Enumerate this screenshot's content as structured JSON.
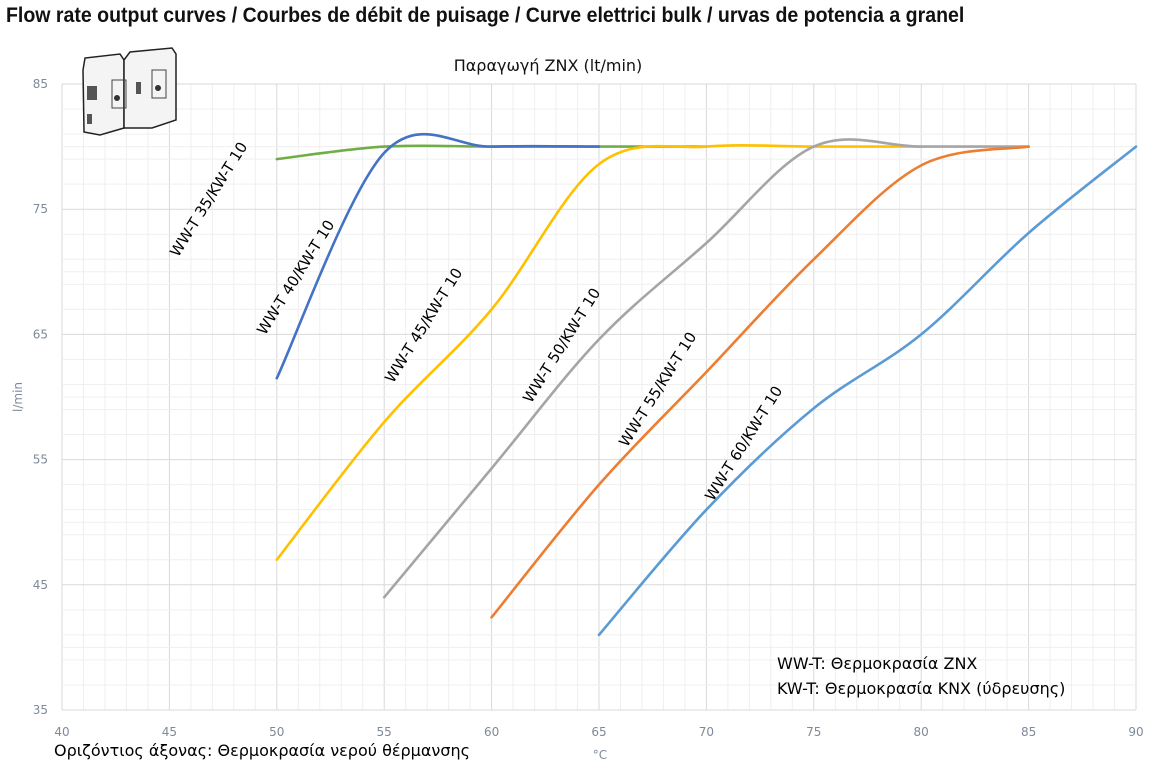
{
  "heading": "Flow rate output curves / Courbes de débit de puisage / Curve elettrici bulk / urvas de potencia a granel",
  "chart_data": {
    "type": "line",
    "title": "Παραγωγή ZNX (lt/min)",
    "xlabel": "°C",
    "ylabel": "l/min",
    "xlim": [
      40,
      90
    ],
    "ylim": [
      35,
      85
    ],
    "x_ticks": [
      "40",
      "45",
      "50",
      "55",
      "60",
      "65",
      "70",
      "75",
      "80",
      "85",
      "90"
    ],
    "y_ticks": [
      "35",
      "45",
      "55",
      "65",
      "75",
      "85"
    ],
    "grid": true,
    "smoothed": true,
    "series": [
      {
        "name": "WW-T 35/KW-T 10",
        "color": "#70ad47",
        "x": [
          50,
          55,
          60,
          65,
          70
        ],
        "y": [
          79,
          80,
          80,
          80,
          80
        ]
      },
      {
        "name": "WW-T 40/KW-T 10",
        "color": "#4472c4",
        "x": [
          50,
          55,
          60,
          65
        ],
        "y": [
          61.5,
          79.5,
          80,
          80
        ]
      },
      {
        "name": "WW-T 45/KW-T 10",
        "color": "#ffc000",
        "x": [
          50,
          55,
          60,
          65,
          70,
          75,
          80
        ],
        "y": [
          47,
          58,
          67,
          78.6,
          80,
          80,
          80
        ]
      },
      {
        "name": "WW-T 50/KW-T 10",
        "color": "#a5a5a5",
        "x": [
          55,
          60,
          65,
          70,
          75,
          80,
          85
        ],
        "y": [
          44,
          54.3,
          64.6,
          72.3,
          80,
          80,
          80
        ]
      },
      {
        "name": "WW-T 55/KW-T 10",
        "color": "#ed7d31",
        "x": [
          60,
          65,
          70,
          75,
          80,
          85
        ],
        "y": [
          42.4,
          53,
          62,
          71,
          78.5,
          80
        ]
      },
      {
        "name": "WW-T 60/KW-T 10",
        "color": "#5b9bd5",
        "x": [
          65,
          70,
          75,
          80,
          85,
          90
        ],
        "y": [
          41,
          51,
          59.1,
          65,
          73.1,
          80
        ]
      }
    ],
    "annotations": [
      "WW-T: Θερμοκρασία ZNX",
      "KW-T: Θερμοκρασία KNX (ύδρευσης)",
      "Οριζόντιος άξονας: Θερμοκρασία νερού θέρμανσης"
    ]
  }
}
